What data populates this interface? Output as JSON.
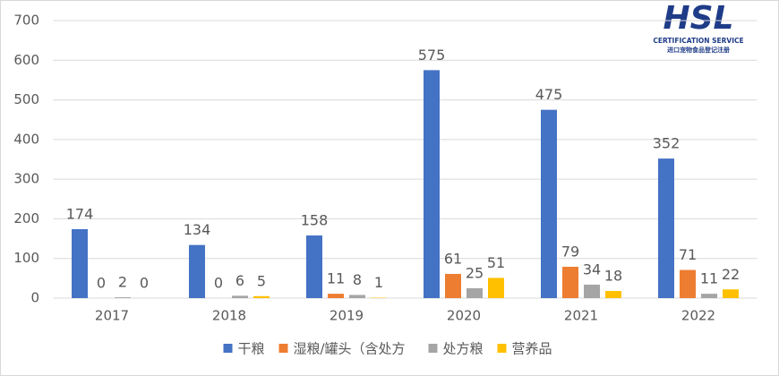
{
  "chart_data": {
    "type": "bar",
    "categories": [
      "2017",
      "2018",
      "2019",
      "2020",
      "2021",
      "2022"
    ],
    "series": [
      {
        "name": "干粮",
        "color": "#4472c4",
        "values": [
          174,
          134,
          158,
          575,
          475,
          352
        ]
      },
      {
        "name": "湿粮/罐头（含处方",
        "color": "#ed7d31",
        "values": [
          0,
          0,
          11,
          61,
          79,
          71
        ]
      },
      {
        "name": "处方粮",
        "color": "#a5a5a5",
        "values": [
          2,
          6,
          8,
          25,
          34,
          11
        ]
      },
      {
        "name": "营养品",
        "color": "#ffc000",
        "values": [
          0,
          5,
          1,
          51,
          18,
          22
        ]
      }
    ],
    "ylim": [
      0,
      700
    ],
    "yticks": [
      0,
      100,
      200,
      300,
      400,
      500,
      600,
      700
    ],
    "grid": true,
    "legend": "bottom"
  },
  "logo": {
    "title": "HSL",
    "subtitle": "CERTIFICATION SERVICE",
    "caption": "进口宠物食品登记注册"
  }
}
